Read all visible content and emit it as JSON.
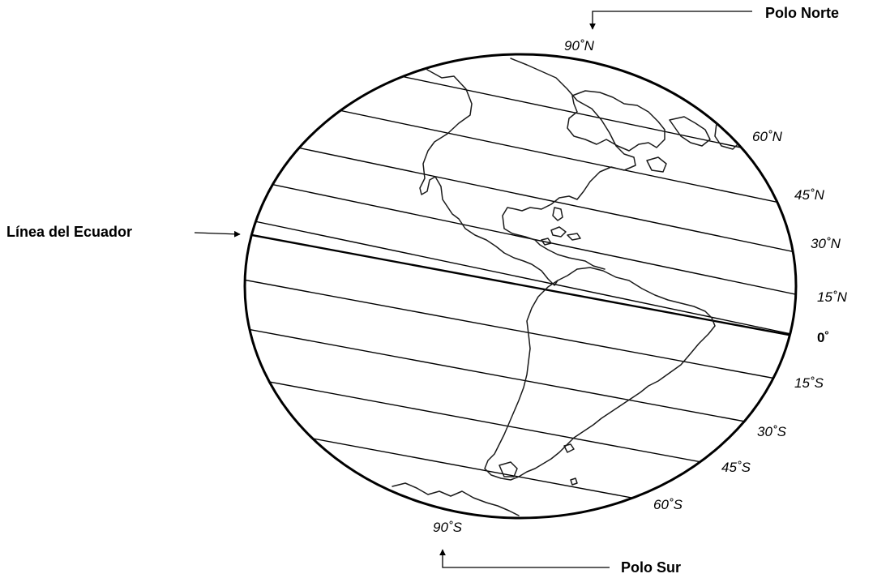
{
  "labels": {
    "north_pole": "Polo Norte",
    "south_pole": "Polo Sur",
    "equator": "Línea del Ecuador"
  },
  "latitudes": {
    "n90": "90˚N",
    "n60": "60˚N",
    "n45": "45˚N",
    "n30": "30˚N",
    "n15": "15˚N",
    "eq": "0˚",
    "s15": "15˚S",
    "s30": "30˚S",
    "s45": "45˚S",
    "s60": "60˚S",
    "s90": "90˚S"
  }
}
